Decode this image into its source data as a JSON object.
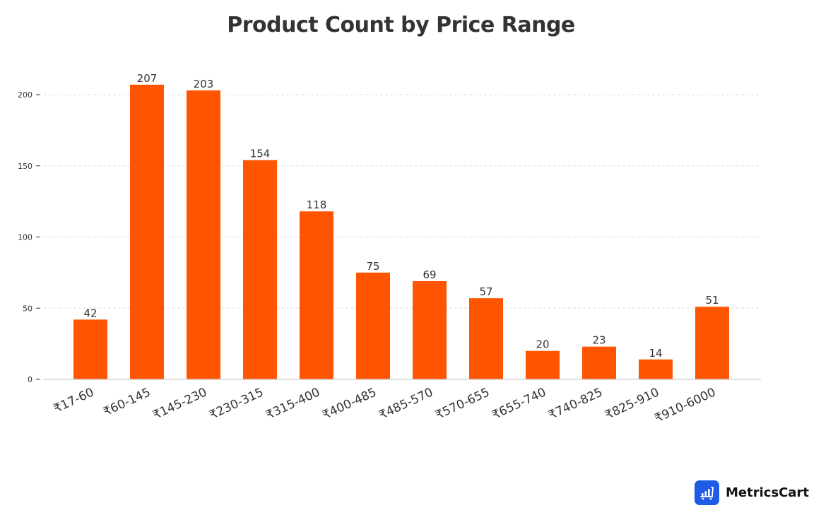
{
  "chart_data": {
    "type": "bar",
    "title": "Product Count by Price Range",
    "xlabel": "",
    "ylabel": "",
    "categories": [
      "₹17-60",
      "₹60-145",
      "₹145-230",
      "₹230-315",
      "₹315-400",
      "₹400-485",
      "₹485-570",
      "₹570-655",
      "₹655-740",
      "₹740-825",
      "₹825-910",
      "₹910-6000"
    ],
    "values": [
      42,
      207,
      203,
      154,
      118,
      75,
      69,
      57,
      20,
      23,
      14,
      51
    ],
    "ylim": [
      0,
      220
    ],
    "yticks": [
      0,
      50,
      100,
      150,
      200
    ],
    "grid": "horizontal dashed",
    "legend": "none",
    "bar_color": "#ff5500",
    "data_labels": true
  },
  "branding": {
    "logo_name": "MetricsCart"
  }
}
